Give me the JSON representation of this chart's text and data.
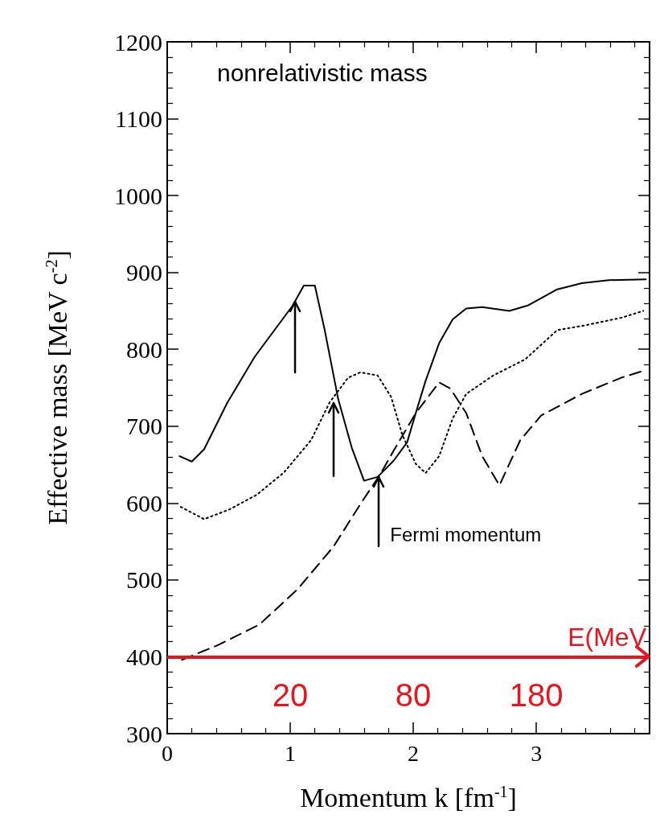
{
  "chart_data": {
    "type": "line",
    "title": "nonrelativistic mass",
    "xlabel": "Momentum k [fm$^{-1}$]",
    "ylabel": "Effective mass [MeV c$^{-2}$]",
    "xlim": [
      0,
      3.92
    ],
    "xticks": [
      0,
      1,
      2,
      3
    ],
    "ylim": [
      300,
      1200
    ],
    "yticks": [
      300,
      400,
      500,
      600,
      700,
      800,
      900,
      1000,
      1100,
      1200
    ],
    "grid": false,
    "marker": "none",
    "series": [
      {
        "color": "#000000",
        "line_style": "solid",
        "x": [
          0.1,
          0.2,
          0.3,
          0.49,
          0.71,
          1.02,
          1.11,
          1.2,
          1.28,
          1.39,
          1.5,
          1.6,
          1.71,
          1.84,
          1.95,
          2.02,
          2.1,
          2.21,
          2.32,
          2.43,
          2.56,
          2.78,
          2.93,
          3.17,
          3.37,
          3.59,
          3.89
        ],
        "values": [
          661,
          654,
          670,
          731,
          790,
          857,
          883,
          883,
          825,
          735,
          672,
          629,
          634,
          655,
          679,
          717,
          759,
          808,
          839,
          853,
          855,
          850,
          857,
          878,
          886,
          890,
          891
        ]
      },
      {
        "color": "#000000",
        "line_style": "dotted",
        "x": [
          0.11,
          0.3,
          0.51,
          0.73,
          0.95,
          1.17,
          1.32,
          1.47,
          1.57,
          1.71,
          1.82,
          1.91,
          2.02,
          2.1,
          2.21,
          2.32,
          2.43,
          2.65,
          2.91,
          3.17,
          3.39,
          3.69,
          3.87
        ],
        "values": [
          595,
          579,
          592,
          611,
          640,
          682,
          731,
          763,
          770,
          766,
          738,
          689,
          651,
          639,
          661,
          710,
          742,
          766,
          787,
          825,
          831,
          841,
          850
        ]
      },
      {
        "color": "#000000",
        "line_style": "dashed",
        "x": [
          0.12,
          0.41,
          0.75,
          1.06,
          1.35,
          1.58,
          1.73,
          1.84,
          2.02,
          2.21,
          2.3,
          2.43,
          2.56,
          2.7,
          2.87,
          3.04,
          3.37,
          3.69,
          3.89
        ],
        "values": [
          396,
          415,
          442,
          488,
          543,
          601,
          637,
          668,
          717,
          757,
          749,
          717,
          661,
          623,
          682,
          714,
          742,
          763,
          773
        ]
      }
    ],
    "ref_lines": [
      {
        "axis": "y",
        "value": 400,
        "label": "E(MeV",
        "color": "#e8141e"
      }
    ],
    "annotations": [
      {
        "text": "Fermi momentum",
        "x": 1.72,
        "y": 634
      },
      "20",
      "80",
      "180"
    ]
  }
}
